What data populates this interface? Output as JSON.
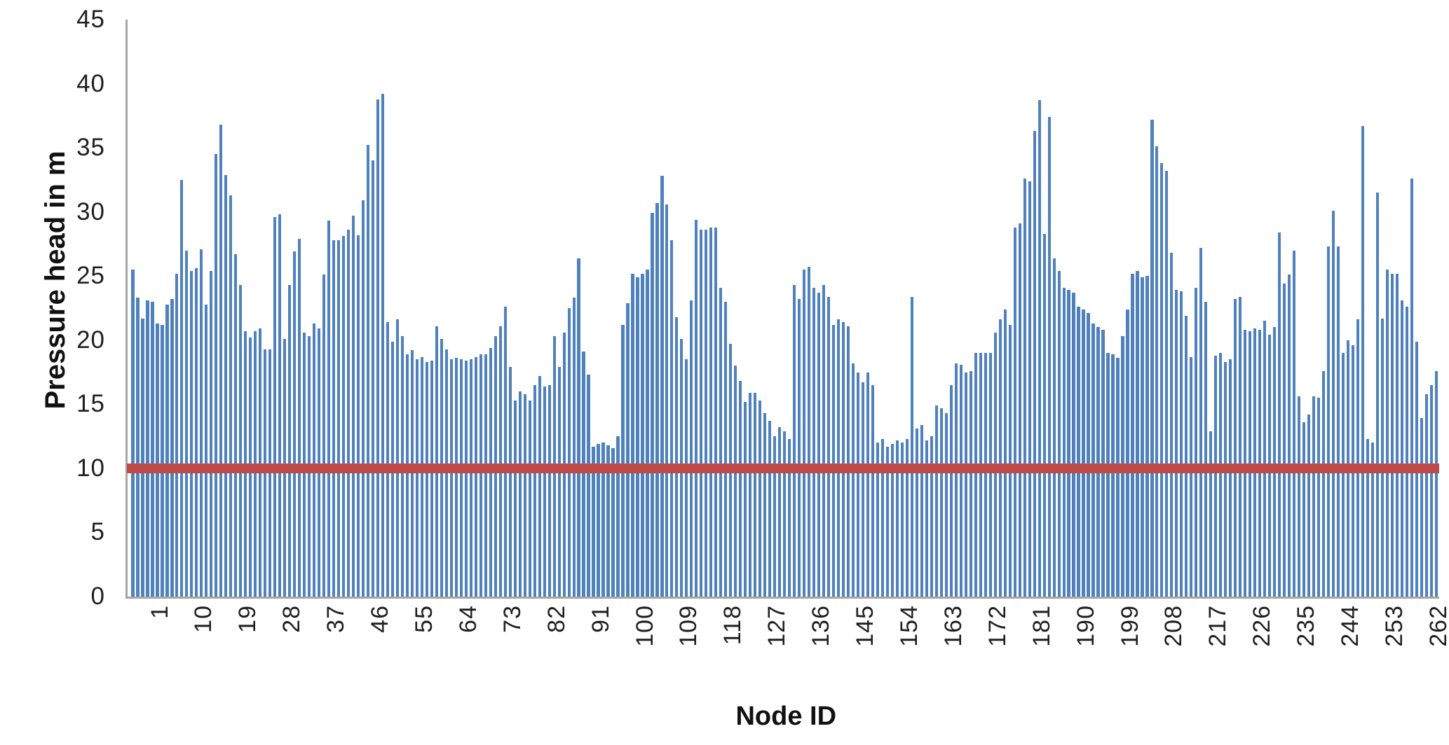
{
  "chart": {
    "y_axis_title": "Pressure head in m",
    "x_axis_title": "Node ID",
    "y_tick_labels": [
      "0",
      "5",
      "10",
      "15",
      "20",
      "25",
      "30",
      "35",
      "40",
      "45"
    ],
    "x_tick_labels": [
      "1",
      "10",
      "19",
      "28",
      "37",
      "46",
      "55",
      "64",
      "73",
      "82",
      "91",
      "100",
      "109",
      "118",
      "127",
      "136",
      "145",
      "154",
      "163",
      "172",
      "181",
      "190",
      "199",
      "208",
      "217",
      "226",
      "235",
      "244",
      "253",
      "262"
    ],
    "colors": {
      "bar": "#4f81bd",
      "reference_line": "#be4b48",
      "axis": "#a6a6a6",
      "text": "#1f1f1f"
    }
  },
  "chart_data": {
    "type": "bar",
    "title": "",
    "xlabel": "Node ID",
    "ylabel": "Pressure head in m",
    "ylim": [
      0,
      45
    ],
    "ytick_step": 5,
    "xtick_start": 1,
    "xtick_step": 9,
    "grid": "off",
    "legend": "none",
    "bar_color": "#4f81bd",
    "reference_line": {
      "y": 10,
      "color": "#be4b48"
    },
    "x_is_node_index_starting_at": 1,
    "values": [
      25.5,
      23.3,
      21.7,
      23.1,
      23.0,
      21.3,
      21.2,
      22.8,
      23.2,
      25.2,
      32.5,
      27.0,
      25.4,
      25.6,
      27.1,
      22.8,
      25.4,
      34.5,
      36.8,
      32.9,
      31.3,
      26.7,
      24.3,
      20.7,
      20.2,
      20.7,
      20.9,
      19.3,
      19.3,
      29.6,
      29.8,
      20.1,
      24.3,
      26.9,
      27.9,
      20.6,
      20.3,
      21.3,
      20.9,
      25.1,
      29.3,
      27.8,
      27.8,
      28.1,
      28.6,
      29.7,
      28.2,
      30.9,
      35.2,
      34.0,
      38.8,
      39.2,
      21.4,
      19.9,
      21.6,
      20.3,
      18.9,
      19.2,
      18.5,
      18.7,
      18.3,
      18.4,
      21.1,
      20.1,
      19.3,
      18.5,
      18.6,
      18.5,
      18.4,
      18.5,
      18.7,
      18.9,
      18.9,
      19.4,
      20.3,
      21.1,
      22.6,
      17.9,
      15.3,
      16.0,
      15.8,
      15.3,
      16.5,
      17.2,
      16.4,
      16.5,
      20.3,
      17.9,
      20.6,
      22.5,
      23.3,
      26.4,
      19.1,
      17.3,
      11.7,
      11.9,
      12.0,
      11.8,
      11.6,
      12.5,
      21.2,
      22.9,
      25.2,
      24.9,
      25.2,
      25.5,
      29.9,
      30.7,
      32.8,
      30.6,
      27.8,
      21.8,
      20.1,
      18.5,
      23.1,
      29.4,
      28.6,
      28.6,
      28.8,
      28.8,
      24.1,
      23.0,
      19.7,
      18.0,
      16.8,
      15.2,
      15.9,
      15.9,
      15.3,
      14.3,
      13.7,
      12.5,
      13.2,
      12.9,
      12.3,
      24.3,
      23.2,
      25.5,
      25.7,
      24.1,
      23.7,
      24.3,
      23.4,
      21.2,
      21.6,
      21.4,
      21.1,
      18.2,
      17.5,
      16.7,
      17.5,
      16.5,
      12.0,
      12.3,
      11.7,
      11.9,
      12.2,
      12.0,
      12.3,
      23.4,
      13.1,
      13.4,
      12.2,
      12.5,
      14.9,
      14.7,
      14.3,
      16.5,
      18.2,
      18.1,
      17.5,
      17.6,
      19.0,
      19.0,
      19.0,
      19.0,
      20.6,
      21.6,
      22.4,
      21.2,
      28.8,
      29.1,
      32.6,
      32.4,
      36.3,
      38.7,
      28.3,
      37.4,
      26.4,
      25.4,
      24.1,
      23.9,
      23.7,
      22.6,
      22.4,
      22.1,
      21.3,
      21.0,
      20.8,
      19.0,
      18.9,
      18.6,
      20.3,
      22.4,
      25.2,
      25.4,
      24.9,
      25.0,
      37.2,
      35.1,
      33.8,
      33.2,
      26.8,
      23.9,
      23.8,
      21.9,
      18.7,
      24.1,
      27.2,
      23.0,
      12.9,
      18.8,
      19.0,
      18.3,
      18.5,
      23.2,
      23.4,
      20.8,
      20.7,
      20.9,
      20.8,
      21.5,
      20.4,
      21.0,
      28.4,
      24.4,
      25.1,
      27.0,
      15.6,
      13.6,
      14.2,
      15.6,
      15.5,
      17.6,
      27.3,
      30.1,
      27.3,
      19.0,
      20.0,
      19.6,
      21.6,
      36.7,
      12.3,
      12.0,
      31.5,
      21.7,
      25.5,
      25.2,
      25.2,
      23.1,
      22.6,
      32.6,
      19.9,
      13.9,
      15.8,
      16.5,
      17.6
    ]
  }
}
